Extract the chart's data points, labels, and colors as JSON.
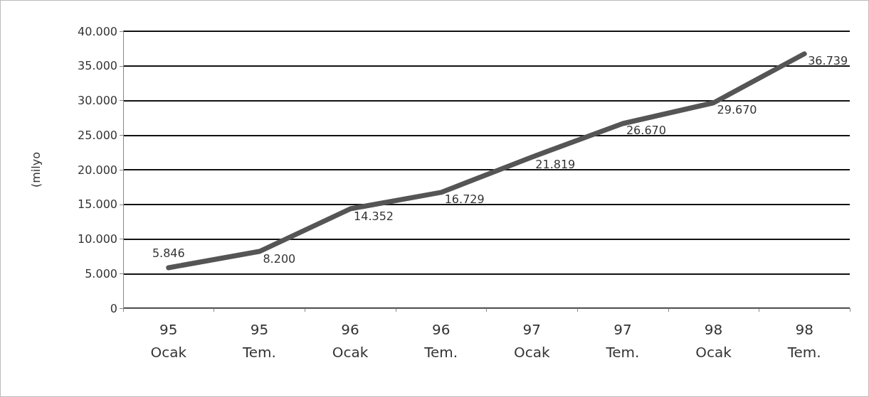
{
  "chart_data": {
    "type": "line",
    "ylabel": "(milyo",
    "categories": [
      "95\nOcak",
      "95\nTem.",
      "96\nOcak",
      "96\nTem.",
      "97\nOcak",
      "97\nTem.",
      "98\nOcak",
      "98\nTem."
    ],
    "series": [
      {
        "color": "#555555",
        "values": [
          5846,
          8200,
          14352,
          16729,
          21819,
          26670,
          29670,
          36739
        ],
        "value_labels": [
          "5.846",
          "8.200",
          "14.352",
          "16.729",
          "21.819",
          "26.670",
          "29.670",
          "36.739"
        ]
      }
    ],
    "ylim": [
      0,
      40000
    ],
    "yticks": [
      {
        "value": 0,
        "label": "0"
      },
      {
        "value": 5000,
        "label": "5.000"
      },
      {
        "value": 10000,
        "label": "10.000"
      },
      {
        "value": 15000,
        "label": "15.000"
      },
      {
        "value": 20000,
        "label": "20.000"
      },
      {
        "value": 25000,
        "label": "25.000"
      },
      {
        "value": 30000,
        "label": "30.000"
      },
      {
        "value": 35000,
        "label": "35.000"
      },
      {
        "value": 40000,
        "label": "40.000"
      }
    ],
    "grid": "y",
    "marker": "none",
    "line_style": "solid"
  }
}
